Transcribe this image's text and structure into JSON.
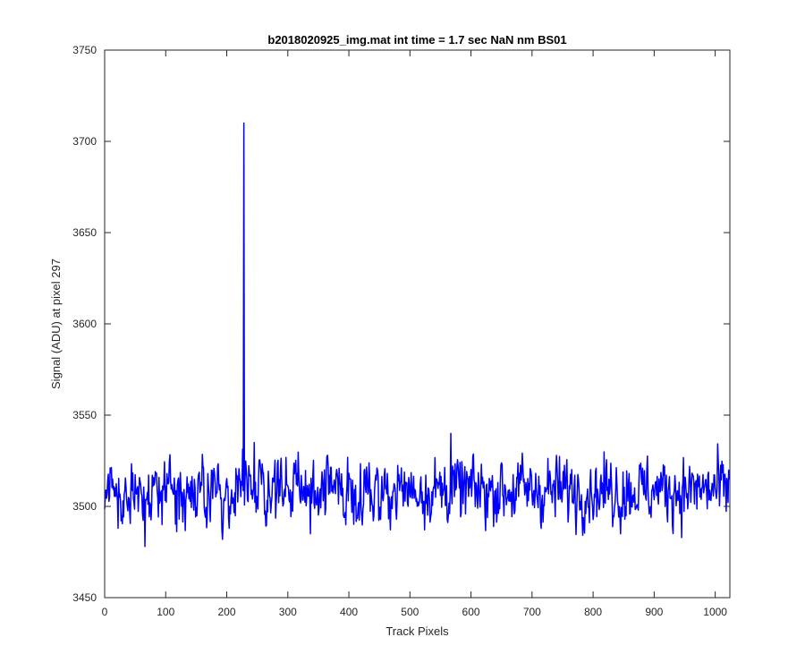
{
  "chart_data": {
    "type": "line",
    "title": "b2018020925_img.mat int time = 1.7 sec  NaN nm BS01",
    "xlabel": "Track Pixels",
    "ylabel": "Signal (ADU) at pixel 297",
    "xlim": [
      0,
      1024
    ],
    "ylim": [
      3450,
      3750
    ],
    "xticks": [
      0,
      100,
      200,
      300,
      400,
      500,
      600,
      700,
      800,
      900,
      1000
    ],
    "yticks": [
      3450,
      3500,
      3550,
      3600,
      3650,
      3700,
      3750
    ],
    "grid": false,
    "line_color": "#0000ff",
    "series": [
      {
        "baseline": 3509,
        "noise_amplitude": 11,
        "n_points": 1024,
        "notable_points": [
          {
            "x": 228,
            "y": 3710
          },
          {
            "x": 66,
            "y": 3478
          },
          {
            "x": 567,
            "y": 3540
          },
          {
            "x": 245,
            "y": 3535
          },
          {
            "x": 337,
            "y": 3485
          },
          {
            "x": 845,
            "y": 3485
          },
          {
            "x": 22,
            "y": 3488
          }
        ]
      }
    ]
  }
}
